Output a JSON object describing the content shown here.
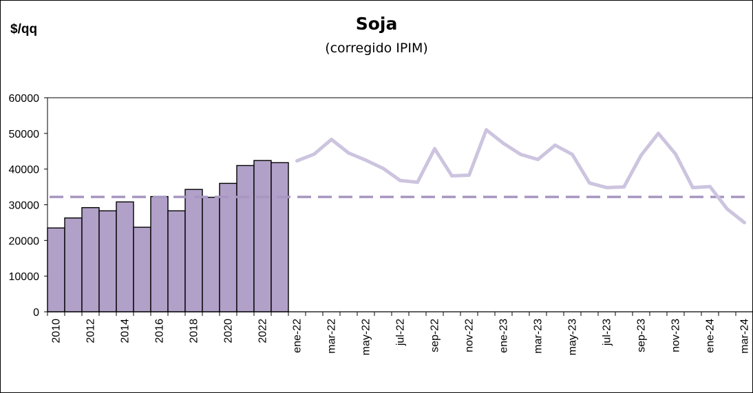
{
  "chart_data": {
    "type": "bar+line",
    "title": "Soja",
    "subtitle": "(corregido IPIM)",
    "ylabel": "$/qq",
    "ylim": [
      0,
      60000
    ],
    "yticks": [
      0,
      10000,
      20000,
      30000,
      40000,
      50000,
      60000
    ],
    "reference_line": 32200,
    "bar_series": {
      "categories": [
        "2010",
        "2011",
        "2012",
        "2013",
        "2014",
        "2015",
        "2016",
        "2017",
        "2018",
        "2019",
        "2020",
        "2021",
        "2022",
        "2023"
      ],
      "values": [
        23500,
        26300,
        29200,
        28300,
        30800,
        23700,
        32300,
        28300,
        34300,
        32100,
        36000,
        41000,
        42400,
        41800
      ],
      "color": "#b1a0c8"
    },
    "line_series": {
      "categories": [
        "ene-22",
        "feb-22",
        "mar-22",
        "abr-22",
        "may-22",
        "jun-22",
        "jul-22",
        "ago-22",
        "sep-22",
        "oct-22",
        "nov-22",
        "dic-22",
        "ene-23",
        "feb-23",
        "mar-23",
        "abr-23",
        "may-23",
        "jun-23",
        "jul-23",
        "ago-23",
        "sep-23",
        "oct-23",
        "nov-23",
        "dic-23",
        "ene-24",
        "feb-24",
        "mar-24"
      ],
      "values": [
        42300,
        44200,
        48300,
        44500,
        42500,
        40200,
        36800,
        36300,
        45700,
        38100,
        38300,
        51000,
        47200,
        44100,
        42700,
        46700,
        44100,
        36100,
        34800,
        35000,
        43900,
        50000,
        44200,
        34800,
        35100,
        28800,
        25000
      ],
      "color": "#cdc4df"
    },
    "x_tick_labels": [
      "2010",
      "2012",
      "2014",
      "2016",
      "2018",
      "2020",
      "2022",
      "ene-22",
      "mar-22",
      "may-22",
      "jul-22",
      "sep-22",
      "nov-22",
      "ene-23",
      "mar-23",
      "may-23",
      "jul-23",
      "sep-23",
      "nov-23",
      "ene-24",
      "mar-24"
    ],
    "reference_color": "#a896c0",
    "grid": false,
    "legend": "none"
  }
}
